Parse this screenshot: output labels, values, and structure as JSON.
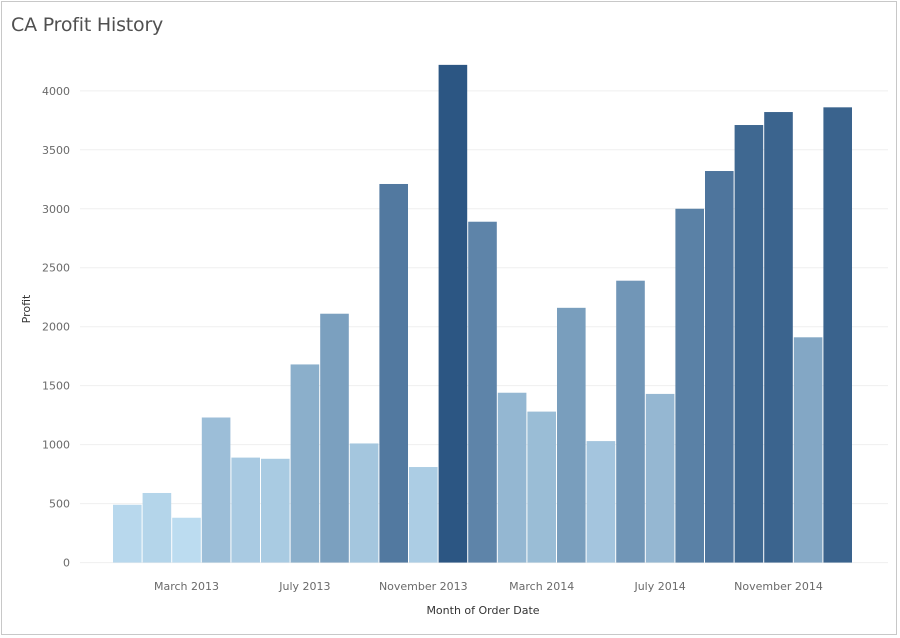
{
  "chart_data": {
    "type": "bar",
    "title": "CA Profit History",
    "xlabel": "Month of Order Date",
    "ylabel": "Profit",
    "ylim": [
      -80,
      4380
    ],
    "y_ticks": [
      0,
      500,
      1000,
      1500,
      2000,
      2500,
      3000,
      3500,
      4000
    ],
    "grid": true,
    "legend": "none",
    "categories": [
      "January 2013",
      "February 2013",
      "March 2013",
      "April 2013",
      "May 2013",
      "June 2013",
      "July 2013",
      "August 2013",
      "September 2013",
      "October 2013",
      "November 2013",
      "December 2013",
      "January 2014",
      "February 2014",
      "March 2014",
      "April 2014",
      "May 2014",
      "June 2014",
      "July 2014",
      "August 2014",
      "September 2014",
      "October 2014",
      "November 2014",
      "December 2014",
      "January 2015"
    ],
    "x_tick_labels": [
      {
        "category_index": 2,
        "label": "March 2013"
      },
      {
        "category_index": 6,
        "label": "July 2013"
      },
      {
        "category_index": 10,
        "label": "November 2013"
      },
      {
        "category_index": 14,
        "label": "March 2014"
      },
      {
        "category_index": 18,
        "label": "July 2014"
      },
      {
        "category_index": 22,
        "label": "November 2014"
      }
    ],
    "values": [
      490,
      590,
      380,
      1230,
      890,
      880,
      1680,
      2110,
      1010,
      3210,
      810,
      4220,
      2890,
      1440,
      1280,
      2160,
      1030,
      2390,
      1430,
      3000,
      3320,
      3710,
      3820,
      1910,
      3860
    ],
    "color_scale": {
      "low": "#bcdcf0",
      "high": "#2c5683",
      "domain": [
        380,
        4220
      ]
    }
  }
}
